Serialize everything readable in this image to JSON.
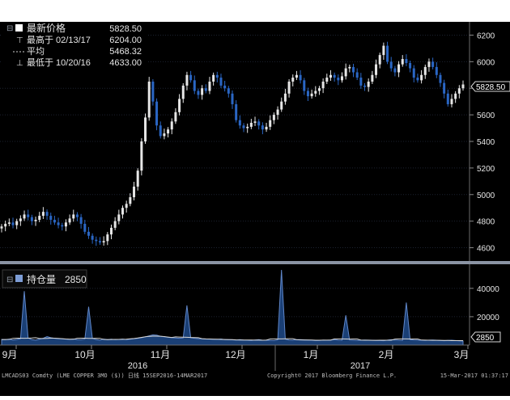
{
  "legend": {
    "last_label": "最新价格",
    "last_value": "5828.50",
    "high_label": "最高于 02/13/17",
    "high_value": "6204.00",
    "avg_label": "平均",
    "avg_value": "5468.32",
    "low_label": "最低于 10/20/16",
    "low_value": "4633.00"
  },
  "last_price_tag": "5828.50",
  "oi_legend": {
    "label": "持仓量",
    "value": "2850"
  },
  "oi_last_tag": "2850",
  "footer": {
    "ticker": "LMCADS03 Comdty (LME COPPER   3MO ($))  日线 15SEP2016-14MAR2017",
    "copyright": "Copyright© 2017 Bloomberg Finance L.P.",
    "timestamp": "15-Mar-2017 01:37:17"
  },
  "colors": {
    "up": "#e6e6e6",
    "down": "#2a66c4",
    "grid": "#1c2230",
    "text": "#e6e6e6"
  },
  "chart_data": [
    {
      "type": "candlestick",
      "x_axis": {
        "months": [
          "9月",
          "10月",
          "11月",
          "12月",
          "1月",
          "2月",
          "3月"
        ],
        "years": [
          "2016",
          "2017"
        ]
      },
      "y_axis": {
        "ticks": [
          4600,
          4800,
          5000,
          5200,
          5400,
          5600,
          5800,
          6000,
          6200
        ],
        "range": [
          4500,
          6300
        ]
      },
      "series": [
        {
          "values": [
            4760,
            4780,
            4790,
            4770,
            4800,
            4820,
            4850,
            4830,
            4800,
            4810,
            4840,
            4870,
            4840,
            4810,
            4790,
            4770,
            4760,
            4790,
            4820,
            4850,
            4830,
            4780,
            4720,
            4690,
            4660,
            4650,
            4640,
            4650,
            4700,
            4750,
            4800,
            4850,
            4900,
            4930,
            4980,
            5060,
            5180,
            5400,
            5580,
            5850,
            5700,
            5520,
            5440,
            5460,
            5490,
            5550,
            5620,
            5720,
            5820,
            5900,
            5860,
            5780,
            5750,
            5800,
            5780,
            5850,
            5900,
            5880,
            5820,
            5800,
            5760,
            5680,
            5560,
            5520,
            5500,
            5510,
            5540,
            5550,
            5520,
            5490,
            5510,
            5560,
            5600,
            5640,
            5700,
            5760,
            5850,
            5880,
            5900,
            5860,
            5780,
            5740,
            5760,
            5780,
            5800,
            5850,
            5880,
            5900,
            5880,
            5860,
            5890,
            5950,
            5960,
            5920,
            5880,
            5820,
            5810,
            5850,
            5900,
            5980,
            6050,
            6120,
            6000,
            5950,
            5920,
            5980,
            6020,
            5990,
            5950,
            5880,
            5860,
            5900,
            5960,
            6000,
            5960,
            5900,
            5840,
            5760,
            5680,
            5720,
            5760,
            5800,
            5828.5
          ]
        }
      ]
    },
    {
      "type": "area",
      "y_axis": {
        "ticks": [
          20000,
          40000
        ],
        "range": [
          0,
          57000
        ]
      },
      "series": [
        {
          "values": [
            4000,
            3800,
            4200,
            3600,
            4000,
            4500,
            38000,
            5000,
            3800,
            3500,
            4200,
            4800,
            6000,
            5200,
            4800,
            4500,
            4400,
            4200,
            4000,
            4300,
            3900,
            3800,
            4200,
            27000,
            4800,
            3800,
            3500,
            4200,
            3900,
            4100,
            3800,
            4000,
            4200,
            3800,
            4100,
            4500,
            4800,
            5200,
            5800,
            6500,
            7200,
            7000,
            6200,
            5800,
            5500,
            5200,
            5000,
            4800,
            5000,
            28000,
            5200,
            4800,
            4500,
            4400,
            4300,
            4200,
            4100,
            4000,
            4300,
            3900,
            3800,
            3700,
            3600,
            3800,
            3500,
            3400,
            3200,
            3600,
            3800,
            3400,
            3500,
            3300,
            3200,
            3700,
            53000,
            4200,
            3600,
            3500,
            3800,
            3900,
            3700,
            3600,
            3400,
            3200,
            3300,
            3500,
            3400,
            3600,
            3800,
            3500,
            3400,
            21000,
            3600,
            3400,
            3300,
            3500,
            3600,
            3500,
            3400,
            3300,
            3200,
            3100,
            3500,
            3800,
            3600,
            3400,
            3300,
            30000,
            3800,
            3600,
            3500,
            3400,
            3300,
            3500,
            3600,
            3400,
            3200,
            3100,
            3300,
            3400,
            3200,
            3000,
            2850
          ]
        }
      ]
    }
  ]
}
